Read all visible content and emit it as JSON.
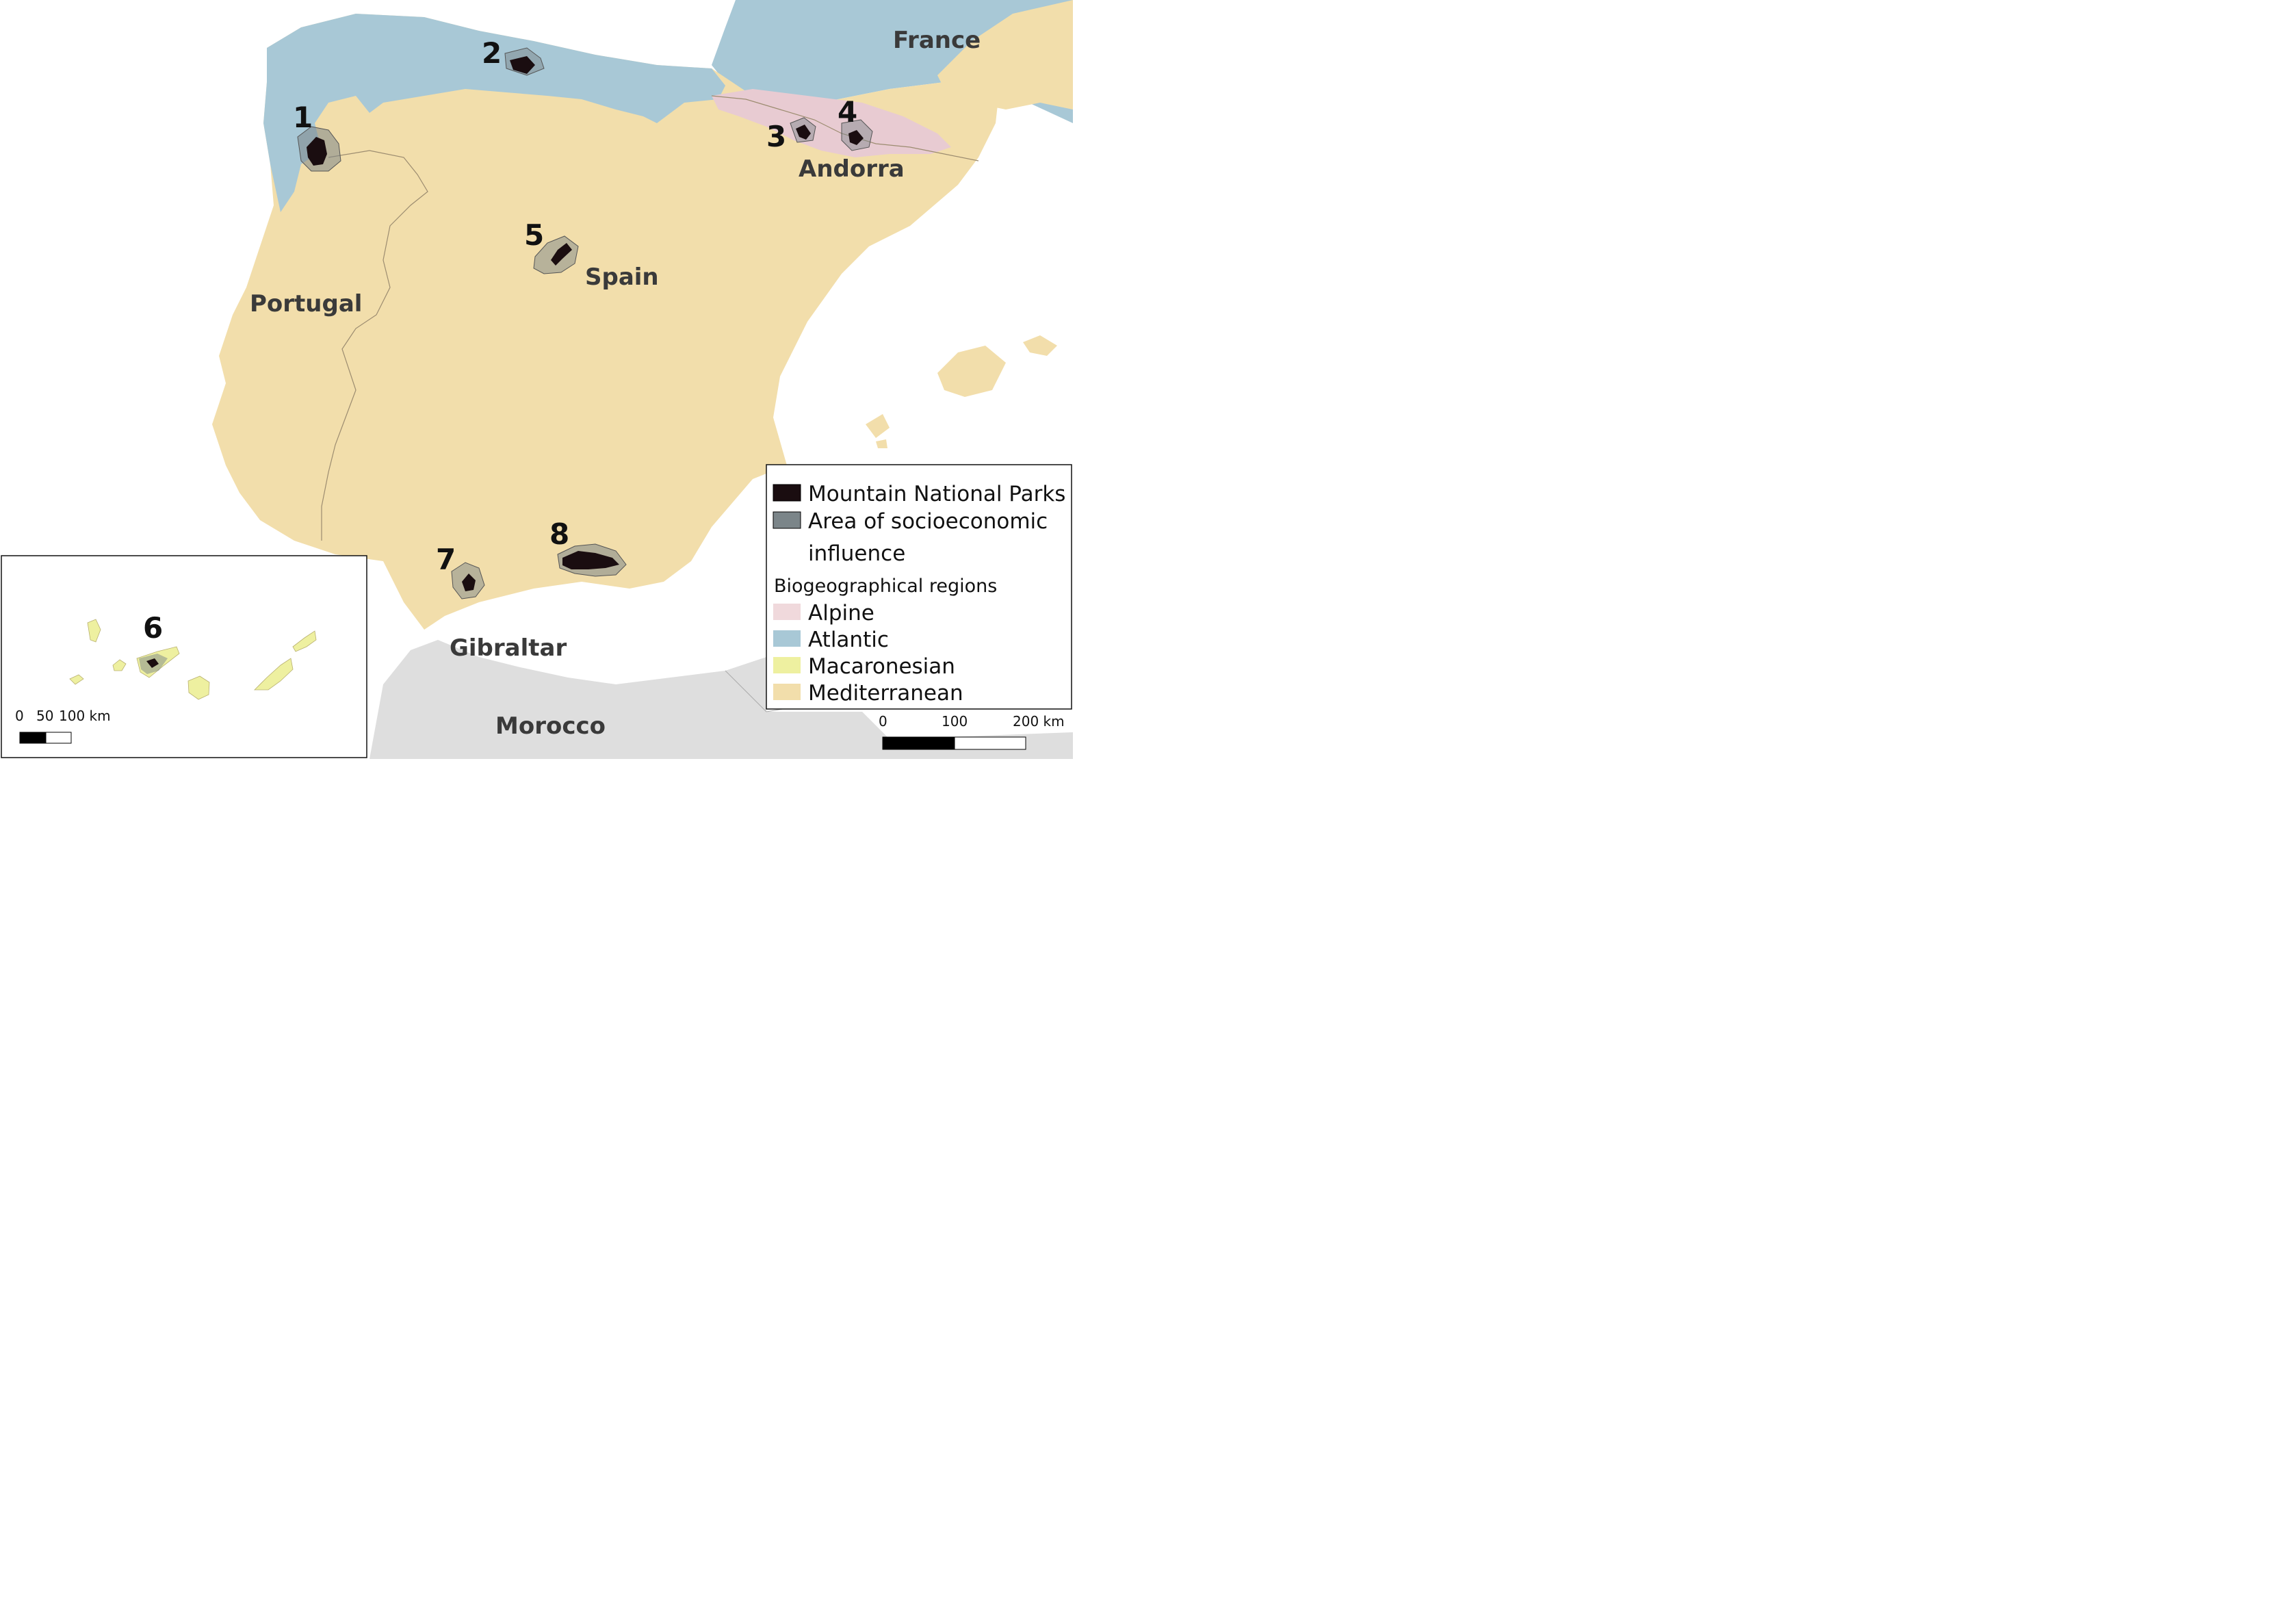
{
  "places": {
    "france": "France",
    "andorra": "Andorra",
    "spain": "Spain",
    "portugal": "Portugal",
    "gibraltar": "Gibraltar",
    "morocco": "Morocco"
  },
  "parks": [
    {
      "num": "1"
    },
    {
      "num": "2"
    },
    {
      "num": "3"
    },
    {
      "num": "4"
    },
    {
      "num": "5"
    },
    {
      "num": "6"
    },
    {
      "num": "7"
    },
    {
      "num": "8"
    }
  ],
  "legend": {
    "parks": "Mountain National Parks",
    "influence_1": "Area of socioeconomic",
    "influence_2": "influence",
    "bio_title": "Biogeographical regions",
    "alpine": "Alpine",
    "atlantic": "Atlantic",
    "macaronesian": "Macaronesian",
    "mediterranean": "Mediterranean"
  },
  "colors": {
    "alpine": "#e8cbd2",
    "atlantic": "#a8c8d6",
    "macaronesian": "#eef0a0",
    "mediterranean": "#f2deab",
    "park": "#1a0d10",
    "influence": "#7b8589"
  },
  "scalebar_main": {
    "t0": "0",
    "t1": "100",
    "t2": "200 km"
  },
  "scalebar_inset": {
    "t0": "0",
    "t1": "50",
    "t2": "100 km"
  }
}
